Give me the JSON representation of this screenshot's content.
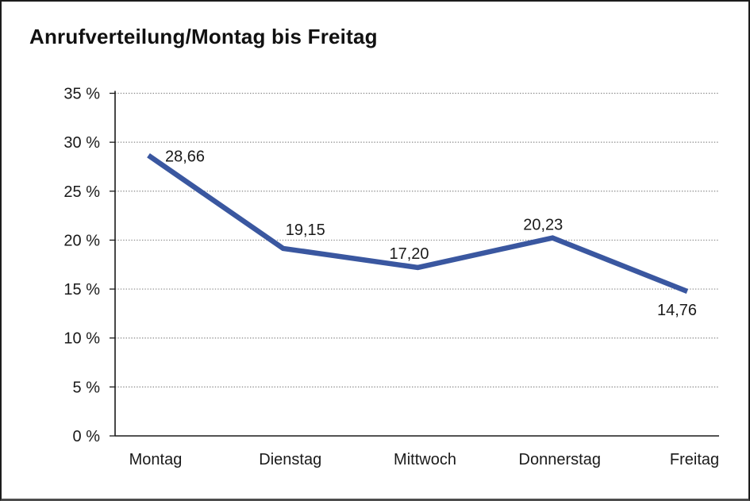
{
  "page": {
    "title": "Anrufverteilung/Montag bis Freitag"
  },
  "chart_data": {
    "type": "line",
    "title": "Anrufverteilung/Montag bis Freitag",
    "categories": [
      "Montag",
      "Dienstag",
      "Mittwoch",
      "Donnerstag",
      "Freitag"
    ],
    "series": [
      {
        "name": "Anrufverteilung",
        "values": [
          28.66,
          19.15,
          17.2,
          20.23,
          14.76
        ]
      }
    ],
    "value_labels": [
      "28,66",
      "19,15",
      "17,20",
      "20,23",
      "14,76"
    ],
    "y_tick_labels": [
      "0 %",
      "5 %",
      "10 %",
      "15 %",
      "20 %",
      "25 %",
      "30 %",
      "35 %"
    ],
    "y_tick_values": [
      0,
      5,
      10,
      15,
      20,
      25,
      30,
      35
    ],
    "ylim": [
      0,
      35
    ],
    "unit": "%",
    "grid": "dotted-horizontal",
    "legend": "none",
    "colors": {
      "line": "#3A57A0",
      "axis": "#1a1a1a",
      "gridline": "#8a8a8a",
      "text": "#1a1a1a"
    }
  }
}
